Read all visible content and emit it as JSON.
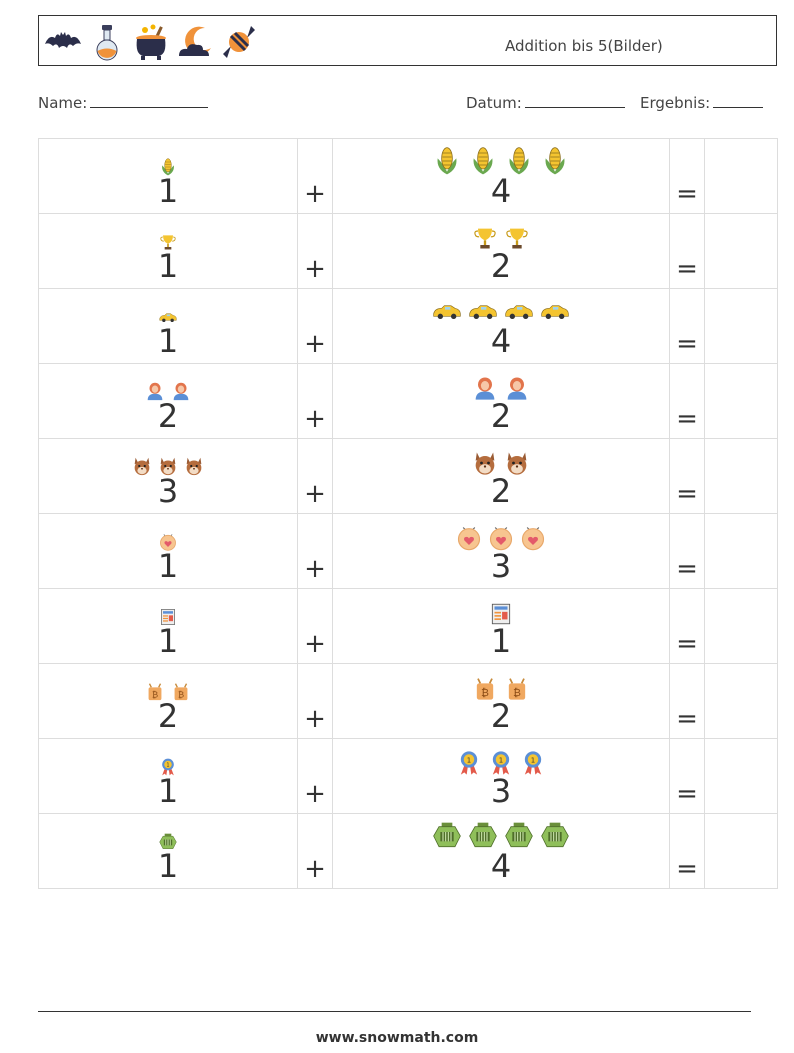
{
  "header": {
    "title": "Addition bis 5(Bilder)",
    "icons": [
      "bat-icon",
      "potion-flask-icon",
      "cauldron-icon",
      "moon-cloud-icon",
      "candy-icon"
    ]
  },
  "info": {
    "name_label": "Name:",
    "date_label": "Datum:",
    "result_label": "Ergebnis:"
  },
  "operators": {
    "plus": "+",
    "equals": "="
  },
  "problems": [
    {
      "a": 1,
      "b": 4,
      "icon": "corn-icon",
      "a_label": "1",
      "b_label": "4"
    },
    {
      "a": 1,
      "b": 2,
      "icon": "trophy-icon",
      "a_label": "1",
      "b_label": "2"
    },
    {
      "a": 1,
      "b": 4,
      "icon": "taxi-car-icon",
      "a_label": "1",
      "b_label": "4"
    },
    {
      "a": 2,
      "b": 2,
      "icon": "person-avatar-icon",
      "a_label": "2",
      "b_label": "2"
    },
    {
      "a": 3,
      "b": 2,
      "icon": "squirrel-face-icon",
      "a_label": "3",
      "b_label": "2"
    },
    {
      "a": 1,
      "b": 3,
      "icon": "love-badge-icon",
      "a_label": "1",
      "b_label": "3"
    },
    {
      "a": 1,
      "b": 1,
      "icon": "newspaper-icon",
      "a_label": "1",
      "b_label": "1"
    },
    {
      "a": 2,
      "b": 2,
      "icon": "bitcoin-bag-icon",
      "a_label": "2",
      "b_label": "2"
    },
    {
      "a": 1,
      "b": 3,
      "icon": "medal-ribbon-icon",
      "a_label": "1",
      "b_label": "3"
    },
    {
      "a": 1,
      "b": 4,
      "icon": "green-bus-icon",
      "a_label": "1",
      "b_label": "4"
    }
  ],
  "footer": {
    "url": "www.snowmath.com"
  },
  "colors": {
    "border": "#dddddd",
    "text": "#333333"
  }
}
